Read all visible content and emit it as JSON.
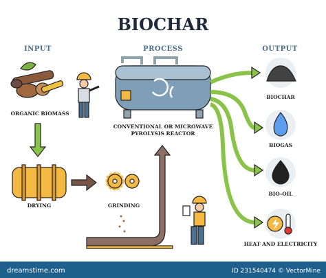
{
  "header": {
    "title": "BIOCHAR"
  },
  "sections": {
    "input": "INPUT",
    "process": "PROCESS",
    "output": "OUTPUT"
  },
  "input_steps": {
    "biomass": "ORGANIC BIOMASS",
    "drying": "DRYING",
    "grinding": "GRINDING"
  },
  "reactor_label": [
    "CONVENTIONAL OR MICROWAVE",
    "PYROLYSIS REACTOR"
  ],
  "outputs": [
    "BIOCHAR",
    "BIOGAS",
    "BIO-OIL",
    "HEAT AND ELECTRICITY"
  ],
  "footer": {
    "brand": "dreamstime.com",
    "credit": "ID 231540474 © VectorMine"
  }
}
